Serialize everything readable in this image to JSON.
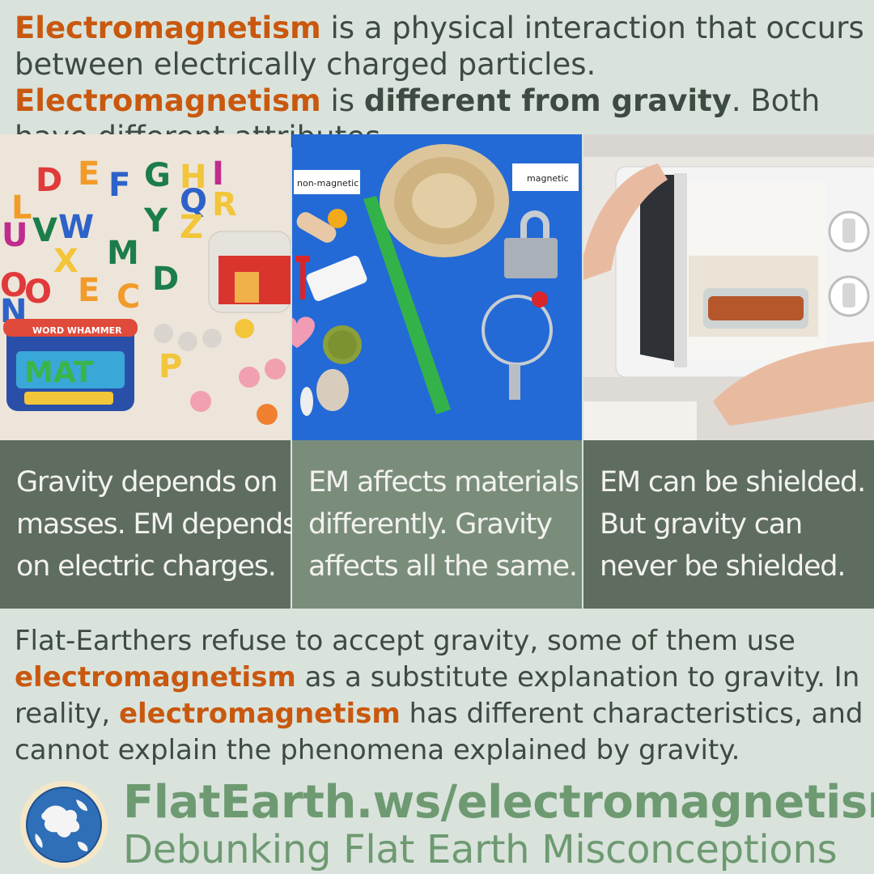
{
  "intro": {
    "t1": "Electromagnetism",
    "t2": " is a physical interaction that occurs between electrically charged particles. ",
    "t3": "Electromagnetism",
    "t4": " is ",
    "t5": "different from gravity",
    "t6": ". Both have different attributes."
  },
  "photos": {
    "blue": {
      "label_left": "non-magnetic",
      "label_right": "magnetic"
    },
    "letters": {
      "toy_label": "WORD WHAMMER",
      "toy_word": "MAT"
    }
  },
  "captions": [
    {
      "lines": [
        "Gravity depends on",
        "masses. EM depends",
        "on electric charges."
      ]
    },
    {
      "lines": [
        "EM affects materials",
        "differently. Gravity",
        "affects all the same."
      ]
    },
    {
      "lines": [
        "EM can be shielded.",
        "But gravity can",
        "never be shielded."
      ]
    }
  ],
  "bottom": {
    "t1": "Flat-Earthers refuse to accept gravity, some of them use ",
    "t2": "electromagnetism",
    "t3": " as a substitute explanation to gravity. In reality, ",
    "t4": "electromagnetism",
    "t5": " has different characteristics, and cannot explain the phenomena explained by gravity."
  },
  "footer": {
    "site": "FlatEarth.ws/electromagnetism",
    "tagline": "Debunking Flat Earth Misconceptions",
    "logo_icon": "globe-icon"
  },
  "colors": {
    "highlight": "#c9580f",
    "text": "#3d4b42",
    "brand_green": "#6e9a72",
    "caption_dark": "#5f6c60",
    "caption_light": "#7a8d7b",
    "background": "#d9e3dc"
  }
}
